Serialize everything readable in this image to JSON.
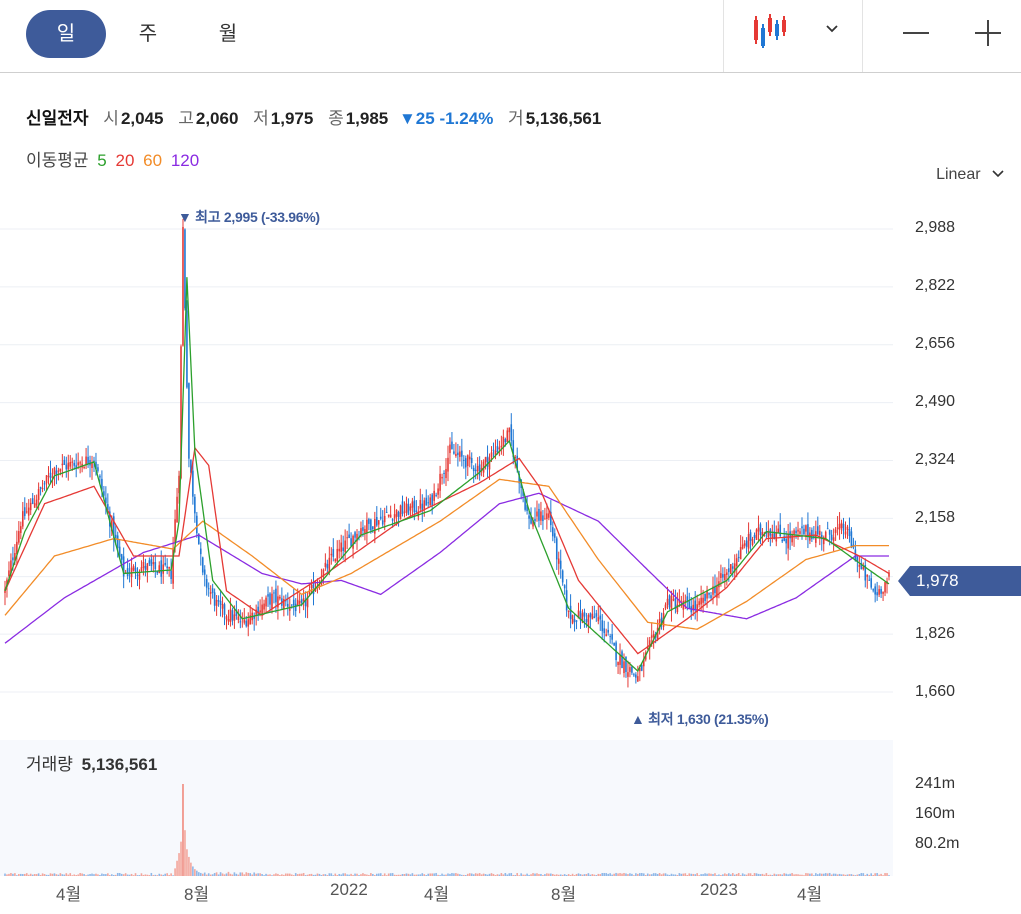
{
  "toolbar": {
    "tabs": [
      {
        "label": "일"
      },
      {
        "label": "주"
      },
      {
        "label": "월"
      }
    ]
  },
  "stock": {
    "name": "신일전자",
    "open_label": "시",
    "open": "2,045",
    "high_label": "고",
    "high": "2,060",
    "low_label": "저",
    "low": "1,975",
    "close_label": "종",
    "close": "1,985",
    "change": "▼25 -1.24%",
    "volume_label": "거",
    "volume": "5,136,561"
  },
  "moving_average": {
    "label": "이동평균",
    "periods": [
      {
        "label": "5",
        "color": "#2ca02c"
      },
      {
        "label": "20",
        "color": "#e53935"
      },
      {
        "label": "60",
        "color": "#f28c28"
      },
      {
        "label": "120",
        "color": "#8a2be2"
      }
    ]
  },
  "scale_mode": "Linear",
  "colors": {
    "up": "#e53935",
    "down": "#1f77d4",
    "accent": "#3e5b9a"
  },
  "chart_data": {
    "type": "candlestick",
    "y_ticks": [
      "2,988",
      "2,822",
      "2,656",
      "2,490",
      "2,324",
      "2,158",
      "1,826",
      "1,660"
    ],
    "y_range": [
      1600,
      3050
    ],
    "current_price": "1,978",
    "annotations": {
      "high": "▼ 최고 2,995 (-33.96%)",
      "low": "▲ 최저 1,630 (21.35%)"
    },
    "x_labels": [
      "4월",
      "8월",
      "2022",
      "4월",
      "8월",
      "2023",
      "4월"
    ],
    "price_series": {
      "close_keypoints": [
        [
          0,
          1950
        ],
        [
          8,
          2150
        ],
        [
          25,
          2300
        ],
        [
          45,
          2330
        ],
        [
          60,
          2000
        ],
        [
          70,
          2020
        ],
        [
          84,
          2000
        ],
        [
          88,
          2300
        ],
        [
          90,
          2990
        ],
        [
          93,
          2330
        ],
        [
          100,
          1990
        ],
        [
          108,
          1900
        ],
        [
          120,
          1860
        ],
        [
          135,
          1930
        ],
        [
          150,
          1900
        ],
        [
          165,
          2040
        ],
        [
          180,
          2130
        ],
        [
          195,
          2170
        ],
        [
          215,
          2200
        ],
        [
          225,
          2350
        ],
        [
          240,
          2300
        ],
        [
          255,
          2400
        ],
        [
          265,
          2150
        ],
        [
          275,
          2170
        ],
        [
          285,
          1880
        ],
        [
          300,
          1870
        ],
        [
          310,
          1760
        ],
        [
          320,
          1700
        ],
        [
          335,
          1920
        ],
        [
          350,
          1900
        ],
        [
          365,
          2000
        ],
        [
          375,
          2090
        ],
        [
          385,
          2130
        ],
        [
          395,
          2100
        ],
        [
          405,
          2120
        ],
        [
          415,
          2110
        ],
        [
          425,
          2130
        ],
        [
          432,
          2020
        ],
        [
          440,
          1940
        ],
        [
          447,
          1985
        ]
      ],
      "ma5_keypoints": [
        [
          0,
          1950
        ],
        [
          10,
          2120
        ],
        [
          25,
          2280
        ],
        [
          45,
          2320
        ],
        [
          60,
          2000
        ],
        [
          84,
          2010
        ],
        [
          88,
          2150
        ],
        [
          92,
          2850
        ],
        [
          96,
          2350
        ],
        [
          105,
          1980
        ],
        [
          120,
          1870
        ],
        [
          150,
          1910
        ],
        [
          180,
          2110
        ],
        [
          215,
          2180
        ],
        [
          240,
          2290
        ],
        [
          255,
          2380
        ],
        [
          265,
          2180
        ],
        [
          285,
          1900
        ],
        [
          320,
          1720
        ],
        [
          335,
          1890
        ],
        [
          365,
          1980
        ],
        [
          385,
          2120
        ],
        [
          415,
          2100
        ],
        [
          432,
          2030
        ],
        [
          447,
          1970
        ]
      ],
      "ma20_keypoints": [
        [
          0,
          1950
        ],
        [
          20,
          2200
        ],
        [
          45,
          2250
        ],
        [
          65,
          2050
        ],
        [
          88,
          2050
        ],
        [
          96,
          2360
        ],
        [
          103,
          2310
        ],
        [
          112,
          1950
        ],
        [
          130,
          1880
        ],
        [
          160,
          1990
        ],
        [
          200,
          2150
        ],
        [
          240,
          2260
        ],
        [
          260,
          2330
        ],
        [
          270,
          2250
        ],
        [
          290,
          1980
        ],
        [
          320,
          1770
        ],
        [
          345,
          1870
        ],
        [
          365,
          1960
        ],
        [
          385,
          2100
        ],
        [
          410,
          2110
        ],
        [
          432,
          2050
        ],
        [
          447,
          2000
        ]
      ],
      "ma60_keypoints": [
        [
          0,
          1880
        ],
        [
          25,
          2050
        ],
        [
          55,
          2100
        ],
        [
          85,
          2070
        ],
        [
          100,
          2150
        ],
        [
          125,
          2050
        ],
        [
          150,
          1940
        ],
        [
          175,
          2000
        ],
        [
          220,
          2150
        ],
        [
          250,
          2270
        ],
        [
          275,
          2250
        ],
        [
          300,
          2040
        ],
        [
          325,
          1860
        ],
        [
          350,
          1840
        ],
        [
          375,
          1920
        ],
        [
          405,
          2040
        ],
        [
          430,
          2080
        ],
        [
          447,
          2080
        ]
      ],
      "ma120_keypoints": [
        [
          0,
          1800
        ],
        [
          30,
          1930
        ],
        [
          70,
          2060
        ],
        [
          98,
          2110
        ],
        [
          130,
          2000
        ],
        [
          150,
          1970
        ],
        [
          170,
          1980
        ],
        [
          190,
          1940
        ],
        [
          220,
          2060
        ],
        [
          250,
          2200
        ],
        [
          270,
          2230
        ],
        [
          300,
          2150
        ],
        [
          325,
          2010
        ],
        [
          345,
          1900
        ],
        [
          375,
          1870
        ],
        [
          400,
          1930
        ],
        [
          430,
          2050
        ],
        [
          447,
          2050
        ]
      ]
    },
    "volume": {
      "label": "거래량",
      "value": "5,136,561",
      "ticks": [
        "241m",
        "160m",
        "80.2m"
      ],
      "range": [
        0,
        290
      ]
    }
  }
}
